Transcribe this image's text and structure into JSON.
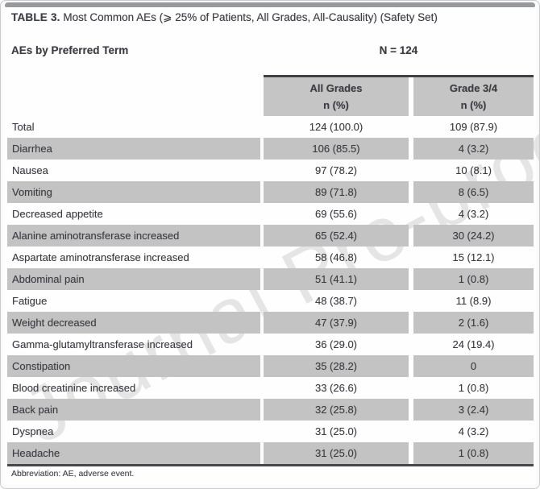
{
  "page": {
    "title_prefix": "TABLE 3.",
    "title_rest": " Most Common AEs (⩾ 25% of Patients, All Grades, All-Causality) (Safety Set)",
    "watermark": "Journal Pre-proof",
    "footnote": "Abbreviation: AE, adverse event."
  },
  "table": {
    "row_header_label": "AEs by Preferred Term",
    "n_label": "N = 124",
    "columns": [
      {
        "title": "All Grades",
        "subtitle": "n (%)"
      },
      {
        "title": "Grade 3/4",
        "subtitle": "n (%)"
      }
    ],
    "rows": [
      {
        "label": "Total",
        "all_grades": "124 (100.0)",
        "grade_3_4": "109 (87.9)",
        "shaded": false
      },
      {
        "label": "Diarrhea",
        "all_grades": "106 (85.5)",
        "grade_3_4": "4 (3.2)",
        "shaded": true
      },
      {
        "label": "Nausea",
        "all_grades": "97 (78.2)",
        "grade_3_4": "10 (8.1)",
        "shaded": false
      },
      {
        "label": "Vomiting",
        "all_grades": "89 (71.8)",
        "grade_3_4": "8 (6.5)",
        "shaded": true
      },
      {
        "label": "Decreased appetite",
        "all_grades": "69 (55.6)",
        "grade_3_4": "4 (3.2)",
        "shaded": false
      },
      {
        "label": "Alanine aminotransferase increased",
        "all_grades": "65 (52.4)",
        "grade_3_4": "30 (24.2)",
        "shaded": true
      },
      {
        "label": "Aspartate aminotransferase increased",
        "all_grades": "58 (46.8)",
        "grade_3_4": "15 (12.1)",
        "shaded": false
      },
      {
        "label": "Abdominal pain",
        "all_grades": "51 (41.1)",
        "grade_3_4": "1 (0.8)",
        "shaded": true
      },
      {
        "label": "Fatigue",
        "all_grades": "48 (38.7)",
        "grade_3_4": "11 (8.9)",
        "shaded": false
      },
      {
        "label": "Weight decreased",
        "all_grades": "47 (37.9)",
        "grade_3_4": "2 (1.6)",
        "shaded": true
      },
      {
        "label": "Gamma-glutamyltransferase increased",
        "all_grades": "36 (29.0)",
        "grade_3_4": "24 (19.4)",
        "shaded": false
      },
      {
        "label": "Constipation",
        "all_grades": "35 (28.2)",
        "grade_3_4": "0",
        "shaded": true
      },
      {
        "label": "Blood creatinine increased",
        "all_grades": "33 (26.6)",
        "grade_3_4": "1 (0.8)",
        "shaded": false
      },
      {
        "label": "Back pain",
        "all_grades": "32 (25.8)",
        "grade_3_4": "3 (2.4)",
        "shaded": true
      },
      {
        "label": "Dyspnea",
        "all_grades": "31 (25.0)",
        "grade_3_4": "4 (3.2)",
        "shaded": false
      },
      {
        "label": "Headache",
        "all_grades": "31 (25.0)",
        "grade_3_4": "1 (0.8)",
        "shaded": true
      }
    ],
    "colors": {
      "row_shade": "#c3c3c3",
      "header_shade": "#c5c5c5",
      "rule": "#46484c"
    }
  }
}
